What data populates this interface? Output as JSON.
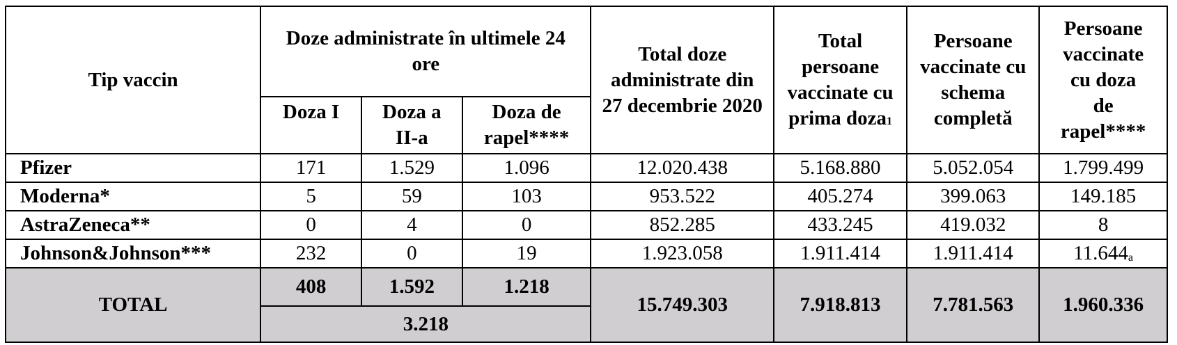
{
  "header": {
    "col_tip": "Tip vaccin",
    "col_doze_24h": "Doze administrate în ultimele 24 ore",
    "sub_doza1_line1": "Doza I",
    "sub_doza2_line1": "Doza a",
    "sub_doza2_line2": "II-a",
    "sub_rapel_line1": "Doza de",
    "sub_rapel_line2": "rapel****",
    "col_total_doze": "Total doze administrate din 27 decembrie 2020",
    "col_total_pers": "Total persoane vaccinate cu prima doza",
    "col_total_pers_sup": "1",
    "col_schema": "Persoane vaccinate cu schema completă",
    "col_rapel_lines": [
      "Persoane",
      "vaccinate",
      "cu doza",
      "de",
      "rapel****"
    ]
  },
  "rows": [
    {
      "name": "Pfizer",
      "d1": "171",
      "d2": "1.529",
      "dr": "1.096",
      "total_doze": "12.020.438",
      "prima": "5.168.880",
      "completa": "5.052.054",
      "rapel": "1.799.499",
      "rapel_sup": ""
    },
    {
      "name": "Moderna*",
      "d1": "5",
      "d2": "59",
      "dr": "103",
      "total_doze": "953.522",
      "prima": "405.274",
      "completa": "399.063",
      "rapel": "149.185",
      "rapel_sup": ""
    },
    {
      "name": "AstraZeneca**",
      "d1": "0",
      "d2": "4",
      "dr": "0",
      "total_doze": "852.285",
      "prima": "433.245",
      "completa": "419.032",
      "rapel": "8",
      "rapel_sup": ""
    },
    {
      "name": "Johnson&Johnson***",
      "d1": "232",
      "d2": "0",
      "dr": "19",
      "total_doze": "1.923.058",
      "prima": "1.911.414",
      "completa": "1.911.414",
      "rapel": "11.644",
      "rapel_sup": "a"
    }
  ],
  "total": {
    "label": "TOTAL",
    "d1": "408",
    "d2": "1.592",
    "dr": "1.218",
    "sum_24h": "3.218",
    "total_doze": "15.749.303",
    "prima": "7.918.813",
    "completa": "7.781.563",
    "rapel": "1.960.336"
  },
  "colors": {
    "total_row_bg": "#d0ced0",
    "border": "#000000"
  }
}
